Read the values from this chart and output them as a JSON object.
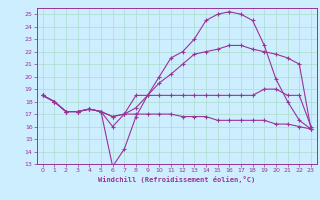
{
  "xlabel": "Windchill (Refroidissement éolien,°C)",
  "bg_color": "#cceeff",
  "grid_color": "#aaddcc",
  "line_color": "#993399",
  "xlim": [
    -0.5,
    23.5
  ],
  "ylim": [
    13,
    25.5
  ],
  "yticks": [
    13,
    14,
    15,
    16,
    17,
    18,
    19,
    20,
    21,
    22,
    23,
    24,
    25
  ],
  "xticks": [
    0,
    1,
    2,
    3,
    4,
    5,
    6,
    7,
    8,
    9,
    10,
    11,
    12,
    13,
    14,
    15,
    16,
    17,
    18,
    19,
    20,
    21,
    22,
    23
  ],
  "line1_x": [
    0,
    1,
    2,
    3,
    4,
    5,
    6,
    7,
    8,
    9,
    10,
    11,
    12,
    13,
    14,
    15,
    16,
    17,
    18,
    19,
    20,
    21,
    22,
    23
  ],
  "line1_y": [
    18.5,
    18.0,
    17.2,
    17.2,
    17.4,
    17.2,
    16.0,
    17.0,
    18.5,
    18.5,
    18.5,
    18.5,
    18.5,
    18.5,
    18.5,
    18.5,
    18.5,
    18.5,
    18.5,
    19.0,
    19.0,
    18.5,
    18.5,
    16.0
  ],
  "line2_x": [
    0,
    1,
    2,
    3,
    4,
    5,
    6,
    7,
    8,
    9,
    10,
    11,
    12,
    13,
    14,
    15,
    16,
    17,
    18,
    19,
    20,
    21,
    22,
    23
  ],
  "line2_y": [
    18.5,
    18.0,
    17.2,
    17.2,
    17.4,
    17.2,
    12.8,
    14.2,
    16.8,
    18.5,
    20.0,
    21.5,
    22.0,
    23.0,
    24.5,
    25.0,
    25.2,
    25.0,
    24.5,
    22.5,
    19.8,
    18.0,
    16.5,
    15.8
  ],
  "line3_x": [
    0,
    1,
    2,
    3,
    4,
    5,
    6,
    7,
    8,
    9,
    10,
    11,
    12,
    13,
    14,
    15,
    16,
    17,
    18,
    19,
    20,
    21,
    22,
    23
  ],
  "line3_y": [
    18.5,
    18.0,
    17.2,
    17.2,
    17.4,
    17.2,
    16.8,
    17.0,
    17.0,
    17.0,
    17.0,
    17.0,
    16.8,
    16.8,
    16.8,
    16.5,
    16.5,
    16.5,
    16.5,
    16.5,
    16.2,
    16.2,
    16.0,
    15.8
  ],
  "line4_x": [
    0,
    1,
    2,
    3,
    4,
    5,
    6,
    7,
    8,
    9,
    10,
    11,
    12,
    13,
    14,
    15,
    16,
    17,
    18,
    19,
    20,
    21,
    22,
    23
  ],
  "line4_y": [
    18.5,
    18.0,
    17.2,
    17.2,
    17.4,
    17.2,
    16.8,
    17.0,
    17.5,
    18.5,
    19.5,
    20.2,
    21.0,
    21.8,
    22.0,
    22.2,
    22.5,
    22.5,
    22.2,
    22.0,
    21.8,
    21.5,
    21.0,
    15.8
  ]
}
